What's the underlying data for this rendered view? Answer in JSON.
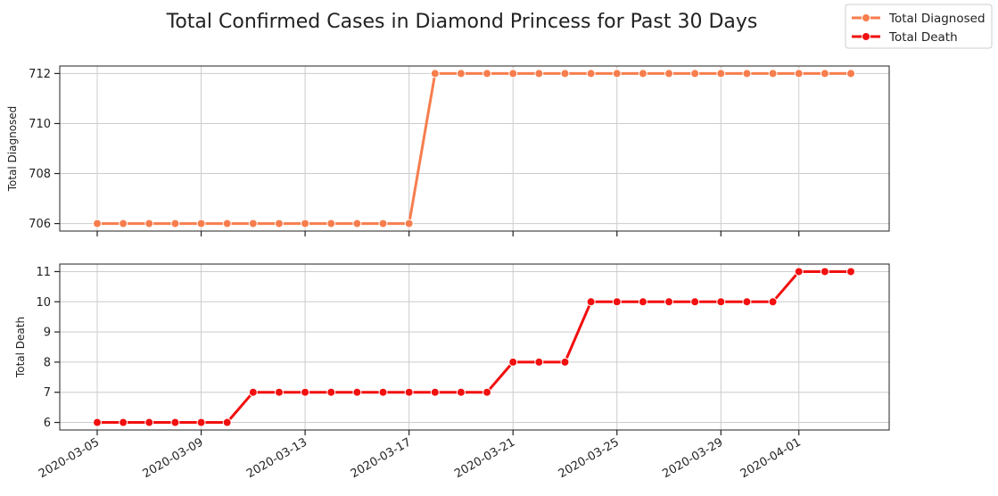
{
  "chart_data": {
    "type": "line",
    "title": "Total Confirmed Cases in Diamond Princess for Past 30 Days",
    "legend": {
      "placement": "top-right",
      "entries": [
        {
          "label": "Total Diagnosed",
          "color": "#f77d4d"
        },
        {
          "label": "Total Death",
          "color": "#f20f0f"
        }
      ]
    },
    "x": [
      "2020-03-05",
      "2020-03-06",
      "2020-03-07",
      "2020-03-08",
      "2020-03-09",
      "2020-03-10",
      "2020-03-11",
      "2020-03-12",
      "2020-03-13",
      "2020-03-14",
      "2020-03-15",
      "2020-03-16",
      "2020-03-17",
      "2020-03-18",
      "2020-03-19",
      "2020-03-20",
      "2020-03-21",
      "2020-03-22",
      "2020-03-23",
      "2020-03-24",
      "2020-03-25",
      "2020-03-26",
      "2020-03-27",
      "2020-03-28",
      "2020-03-29",
      "2020-03-30",
      "2020-03-31",
      "2020-04-01",
      "2020-04-02",
      "2020-04-03"
    ],
    "xticks": [
      "2020-03-05",
      "2020-03-09",
      "2020-03-13",
      "2020-03-17",
      "2020-03-21",
      "2020-03-25",
      "2020-03-29",
      "2020-04-01"
    ],
    "grid": true,
    "subplots": [
      {
        "ylabel": "Total Diagnosed",
        "ylim": [
          705.7,
          712.3
        ],
        "yticks": [
          706,
          708,
          710,
          712
        ],
        "series": {
          "name": "Total Diagnosed",
          "color": "#f77d4d",
          "values": [
            706,
            706,
            706,
            706,
            706,
            706,
            706,
            706,
            706,
            706,
            706,
            706,
            706,
            712,
            712,
            712,
            712,
            712,
            712,
            712,
            712,
            712,
            712,
            712,
            712,
            712,
            712,
            712,
            712,
            712
          ]
        }
      },
      {
        "ylabel": "Total Death",
        "ylim": [
          5.75,
          11.25
        ],
        "yticks": [
          6,
          7,
          8,
          9,
          10,
          11
        ],
        "series": {
          "name": "Total Death",
          "color": "#f20f0f",
          "values": [
            6,
            6,
            6,
            6,
            6,
            6,
            7,
            7,
            7,
            7,
            7,
            7,
            7,
            7,
            7,
            7,
            8,
            8,
            8,
            10,
            10,
            10,
            10,
            10,
            10,
            10,
            10,
            11,
            11,
            11
          ]
        }
      }
    ]
  }
}
